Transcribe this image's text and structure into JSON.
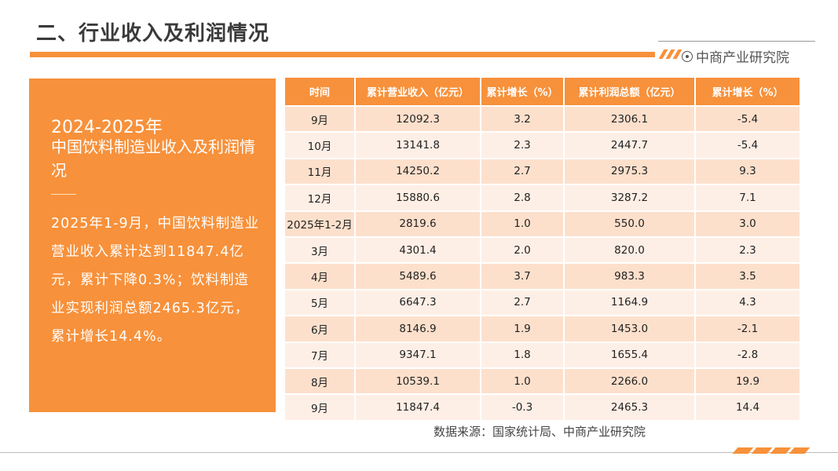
{
  "header": {
    "title": "二、行业收入及利润情况",
    "brand": "中商产业研究院"
  },
  "panel": {
    "year": "2024-2025年",
    "heading": "中国饮料制造业收入及利润情况",
    "summary": "2025年1-9月，中国饮料制造业营业收入累计达到11847.4亿元，累计下降0.3%；饮料制造业实现利润总额2465.3亿元，累计增长14.4%。"
  },
  "table": {
    "headers": [
      "时间",
      "累计营业收入（亿元）",
      "累计增长（%）",
      "累计利润总额（亿元）",
      "累计增长（%）"
    ],
    "rows": [
      [
        "9月",
        "12092.3",
        "3.2",
        "2306.1",
        "-5.4"
      ],
      [
        "10月",
        "13141.8",
        "2.3",
        "2447.7",
        "-5.4"
      ],
      [
        "11月",
        "14250.2",
        "2.7",
        "2975.3",
        "9.3"
      ],
      [
        "12月",
        "15880.6",
        "2.8",
        "3287.2",
        "7.1"
      ],
      [
        "2025年1-2月",
        "2819.6",
        "1.0",
        "550.0",
        "3.0"
      ],
      [
        "3月",
        "4301.4",
        "2.0",
        "820.0",
        "2.3"
      ],
      [
        "4月",
        "5489.6",
        "3.7",
        "983.3",
        "3.5"
      ],
      [
        "5月",
        "6647.3",
        "2.7",
        "1164.9",
        "4.3"
      ],
      [
        "6月",
        "8146.9",
        "1.9",
        "1453.0",
        "-2.1"
      ],
      [
        "7月",
        "9347.1",
        "1.8",
        "1655.4",
        "-2.8"
      ],
      [
        "8月",
        "10539.1",
        "1.0",
        "2266.0",
        "19.9"
      ],
      [
        "9月",
        "11847.4",
        "-0.3",
        "2465.3",
        "14.4"
      ]
    ]
  },
  "footer": {
    "source": "数据来源：国家统计局、中商产业研究院"
  },
  "colors": {
    "accent": "#f7913b",
    "row_dark": "#fde0cc",
    "row_light": "#feefe6"
  }
}
